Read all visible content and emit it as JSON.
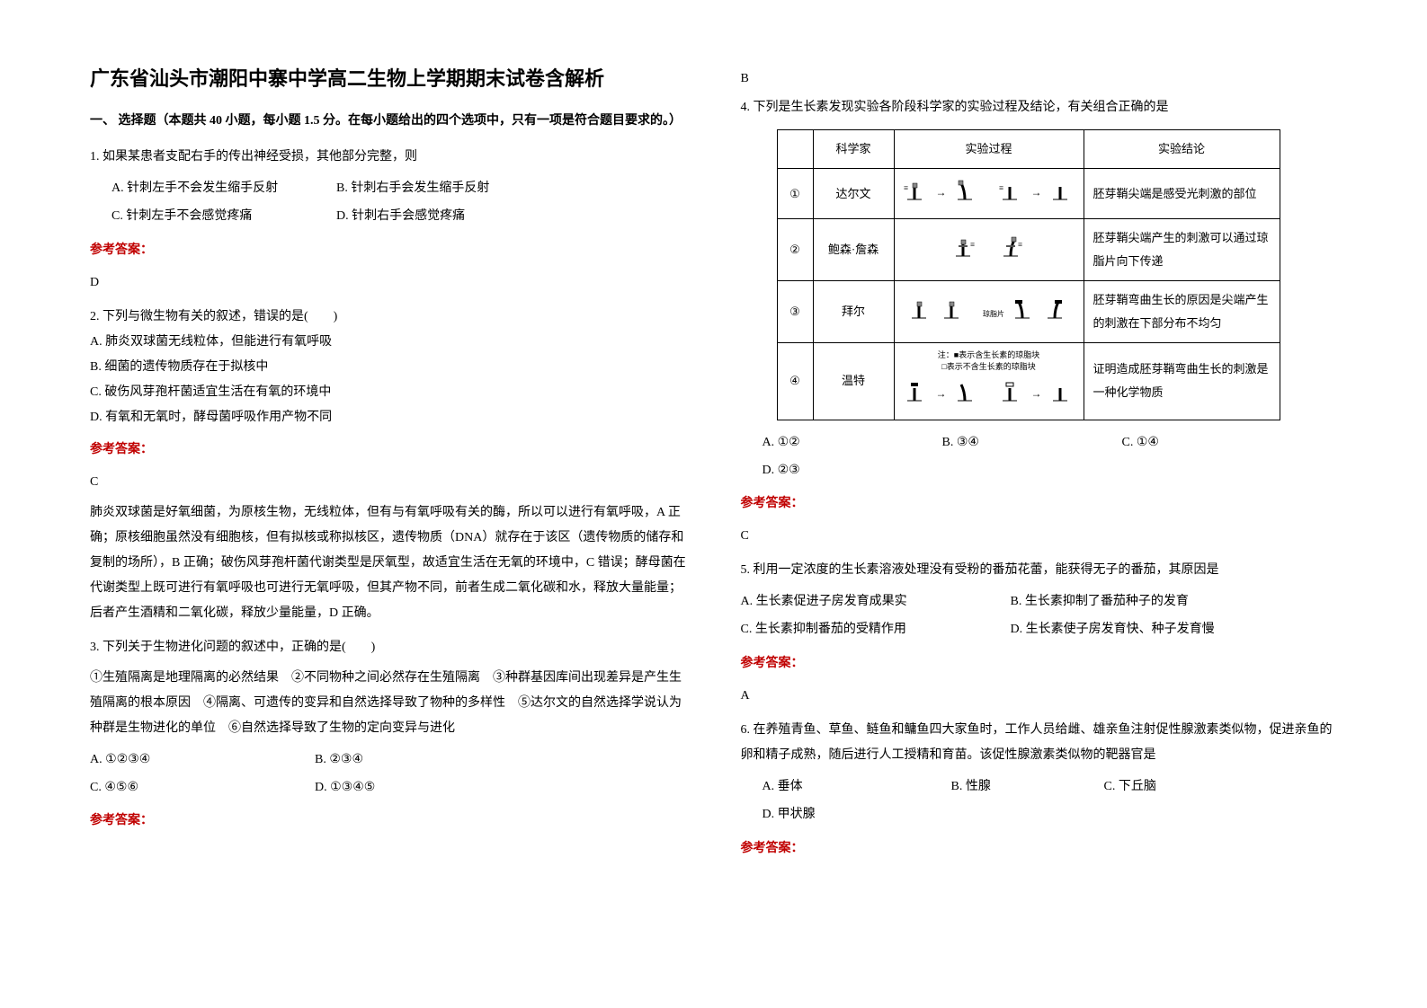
{
  "title": "广东省汕头市潮阳中寨中学高二生物上学期期末试卷含解析",
  "section_header": "一、 选择题（本题共 40 小题，每小题 1.5 分。在每小题给出的四个选项中，只有一项是符合题目要求的。）",
  "answer_label": "参考答案：",
  "q1": {
    "num": "1.",
    "stem": "如果某患者支配右手的传出神经受损，其他部分完整，则",
    "A": "A. 针刺左手不会发生缩手反射",
    "B": "B. 针刺右手会发生缩手反射",
    "C": "C. 针刺左手不会感觉疼痛",
    "D": "D. 针刺右手会感觉疼痛",
    "answer": "D"
  },
  "q2": {
    "num": "2.",
    "stem": "下列与微生物有关的叙述，错误的是(　　)",
    "A": "A. 肺炎双球菌无线粒体，但能进行有氧呼吸",
    "B": "B. 细菌的遗传物质存在于拟核中",
    "C": "C. 破伤风芽孢杆菌适宜生活在有氧的环境中",
    "D": "D. 有氧和无氧时，酵母菌呼吸作用产物不同",
    "answer": "C",
    "explanation": "肺炎双球菌是好氧细菌，为原核生物，无线粒体，但有与有氧呼吸有关的酶，所以可以进行有氧呼吸，A 正确；原核细胞虽然没有细胞核，但有拟核或称拟核区，遗传物质（DNA）就存在于该区（遗传物质的储存和复制的场所），B 正确；破伤风芽孢杆菌代谢类型是厌氧型，故适宜生活在无氧的环境中，C 错误；酵母菌在代谢类型上既可进行有氧呼吸也可进行无氧呼吸，但其产物不同，前者生成二氧化碳和水，释放大量能量；后者产生酒精和二氧化碳，释放少量能量，D 正确。"
  },
  "q3": {
    "num": "3.",
    "stem": "下列关于生物进化问题的叙述中，正确的是(　　)",
    "items": "①生殖隔离是地理隔离的必然结果　②不同物种之间必然存在生殖隔离　③种群基因库间出现差异是产生生殖隔离的根本原因　④隔离、可遗传的变异和自然选择导致了物种的多样性　⑤达尔文的自然选择学说认为种群是生物进化的单位　⑥自然选择导致了生物的定向变异与进化",
    "A": "A. ①②③④",
    "B": "B. ②③④",
    "C": "C. ④⑤⑥",
    "D": "D. ①③④⑤",
    "answer": "B"
  },
  "q4": {
    "num": "4.",
    "stem": "下列是生长素发现实验各阶段科学家的实验过程及结论，有关组合正确的是",
    "table": {
      "headers": [
        "",
        "科学家",
        "实验过程",
        "实验结论"
      ],
      "rows": [
        {
          "n": "①",
          "sci": "达尔文",
          "proc_key": "darwin",
          "conc": "胚芽鞘尖端是感受光刺激的部位"
        },
        {
          "n": "②",
          "sci": "鲍森·詹森",
          "proc_key": "jensen",
          "conc": "胚芽鞘尖端产生的刺激可以通过琼脂片向下传递"
        },
        {
          "n": "③",
          "sci": "拜尔",
          "proc_key": "paal",
          "conc": "胚芽鞘弯曲生长的原因是尖端产生的刺激在下部分布不均匀"
        },
        {
          "n": "④",
          "sci": "温特",
          "proc_key": "went",
          "note1": "注：■表示含生长素的琼脂块",
          "note2": "□表示不含生长素的琼脂块",
          "conc": "证明造成胚芽鞘弯曲生长的刺激是一种化学物质"
        }
      ]
    },
    "A": "A. ①②",
    "B": "B. ③④",
    "C": "C. ①④",
    "D": "D. ②③",
    "answer": "C"
  },
  "q5": {
    "num": "5.",
    "stem": "利用一定浓度的生长素溶液处理没有受粉的番茄花蕾，能获得无子的番茄，其原因是",
    "A": "A. 生长素促进子房发育成果实",
    "B": "B. 生长素抑制了番茄种子的发育",
    "C": "C. 生长素抑制番茄的受精作用",
    "D": "D. 生长素使子房发育快、种子发育慢",
    "answer": "A"
  },
  "q6": {
    "num": "6.",
    "stem": "在养殖青鱼、草鱼、鲢鱼和鳙鱼四大家鱼时，工作人员给雌、雄亲鱼注射促性腺激素类似物，促进亲鱼的卵和精子成熟，随后进行人工授精和育苗。该促性腺激素类似物的靶器官是",
    "A": "A. 垂体",
    "B": "B. 性腺",
    "C": "C. 下丘脑",
    "D": "D. 甲状腺"
  }
}
